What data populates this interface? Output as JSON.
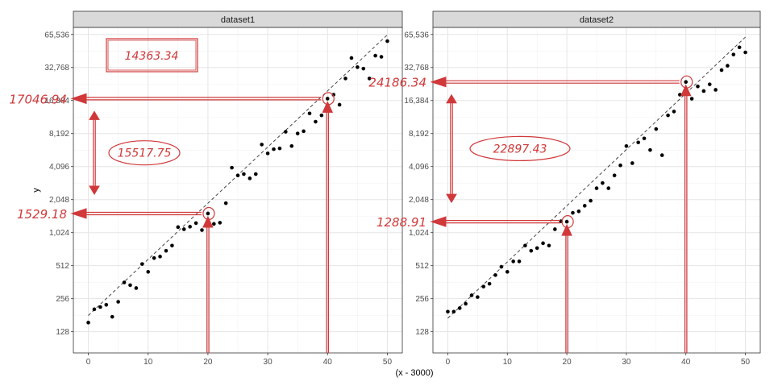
{
  "chart_data": {
    "type": "scatter",
    "scale_y": "log2",
    "xlabel": "(x - 3000)",
    "ylabel": "y",
    "grid": true,
    "xlim": [
      -2.5,
      52.5
    ],
    "ylim": [
      82,
      76000
    ],
    "x_ticks": [
      0,
      10,
      20,
      30,
      40,
      50
    ],
    "y_ticks": [
      128,
      256,
      512,
      1024,
      2048,
      4096,
      8192,
      16384,
      32768,
      65536
    ],
    "y_tick_labels": [
      "128",
      "256",
      "512",
      "1,024",
      "2,048",
      "4,096",
      "8,192",
      "16,384",
      "32,768",
      "65,536"
    ],
    "panels": [
      {
        "title": "dataset1",
        "trend": {
          "x": [
            0,
            50
          ],
          "y": [
            180,
            65000
          ]
        },
        "points": {
          "x": [
            0,
            1,
            2,
            3,
            4,
            5,
            6,
            7,
            8,
            9,
            10,
            11,
            12,
            13,
            14,
            15,
            16,
            17,
            18,
            19,
            20,
            21,
            22,
            23,
            24,
            25,
            26,
            27,
            28,
            29,
            30,
            31,
            32,
            33,
            34,
            35,
            36,
            37,
            38,
            39,
            40,
            41,
            42,
            43,
            44,
            45,
            46,
            47,
            48,
            49,
            50
          ],
          "y": [
            155,
            205,
            215,
            225,
            175,
            240,
            360,
            340,
            320,
            530,
            450,
            600,
            620,
            700,
            780,
            1150,
            1100,
            1160,
            1250,
            1080,
            1529.18,
            1230,
            1260,
            1900,
            4000,
            3400,
            3500,
            3200,
            3500,
            6500,
            5400,
            5900,
            6000,
            8500,
            6300,
            8200,
            8600,
            12500,
            10500,
            12000,
            17046.94,
            18500,
            15000,
            26000,
            40000,
            33000,
            32000,
            26000,
            42000,
            41000,
            57000
          ]
        },
        "annotations": {
          "total_box": "14363.34",
          "difference": "15517.75",
          "upper_value": "17046.94",
          "lower_value": "1529.18",
          "upper_x": 40,
          "lower_x": 20
        }
      },
      {
        "title": "dataset2",
        "trend": {
          "x": [
            0,
            50
          ],
          "y": [
            170,
            62000
          ]
        },
        "points": {
          "x": [
            0,
            1,
            2,
            3,
            4,
            5,
            6,
            7,
            8,
            9,
            10,
            11,
            12,
            13,
            14,
            15,
            16,
            17,
            18,
            19,
            20,
            21,
            22,
            23,
            24,
            25,
            26,
            27,
            28,
            29,
            30,
            31,
            32,
            33,
            34,
            35,
            36,
            37,
            38,
            39,
            40,
            41,
            42,
            43,
            44,
            45,
            46,
            47,
            48,
            49,
            50
          ],
          "y": [
            195,
            195,
            210,
            230,
            275,
            265,
            330,
            350,
            420,
            500,
            450,
            560,
            560,
            780,
            700,
            740,
            820,
            780,
            1100,
            1300,
            1288.91,
            1550,
            1600,
            1800,
            2000,
            2600,
            2900,
            2600,
            3400,
            4200,
            6300,
            4400,
            6800,
            7400,
            5800,
            9000,
            5200,
            12000,
            13000,
            18500,
            24186.34,
            17000,
            22000,
            20000,
            23000,
            20500,
            31000,
            34000,
            43000,
            50000,
            45000
          ]
        },
        "annotations": {
          "difference": "22897.43",
          "upper_value": "24186.34",
          "lower_value": "1288.91",
          "upper_x": 40,
          "lower_x": 20
        }
      }
    ],
    "colors": {
      "points": "#000000",
      "trend": "#333333",
      "annotation": "#d0383a",
      "grid_major": "#e5e5e5",
      "grid_minor": "#f2f2f2",
      "panel_border": "#333333",
      "strip_fill": "#d9d9d9"
    }
  }
}
